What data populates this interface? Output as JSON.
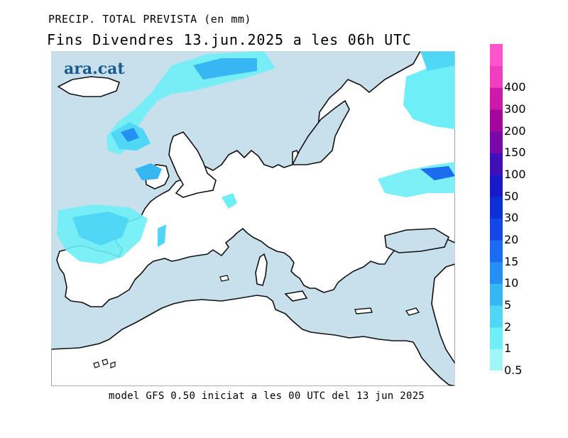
{
  "header": {
    "title": "PRECIP. TOTAL PREVISTA (en mm)",
    "subtitle": "Fins Divendres 13.jun.2025 a les 06h UTC"
  },
  "logo": {
    "text": "ara.cat"
  },
  "footer": {
    "text": "model GFS 0.50 iniciat a les 00 UTC del 13 jun 2025"
  },
  "legend": {
    "levels": [
      {
        "label": "0.5",
        "color": "#9ef6f6"
      },
      {
        "label": "1",
        "color": "#6eeef6"
      },
      {
        "label": "2",
        "color": "#4fd7f5"
      },
      {
        "label": "5",
        "color": "#36b7f4"
      },
      {
        "label": "10",
        "color": "#2590f3"
      },
      {
        "label": "15",
        "color": "#1c6cf0"
      },
      {
        "label": "20",
        "color": "#1448e6"
      },
      {
        "label": "30",
        "color": "#0d2fd6"
      },
      {
        "label": "50",
        "color": "#1a19c6"
      },
      {
        "label": "100",
        "color": "#4010b6"
      },
      {
        "label": "150",
        "color": "#7a08a6"
      },
      {
        "label": "200",
        "color": "#a5069a"
      },
      {
        "label": "300",
        "color": "#cc1aa8"
      },
      {
        "label": "400",
        "color": "#f03ec0"
      },
      {
        "label": "",
        "color": "#ff55cc"
      }
    ]
  },
  "colors": {
    "sea": "#c8dfec",
    "land": "#ffffff",
    "coast": "#111111"
  }
}
